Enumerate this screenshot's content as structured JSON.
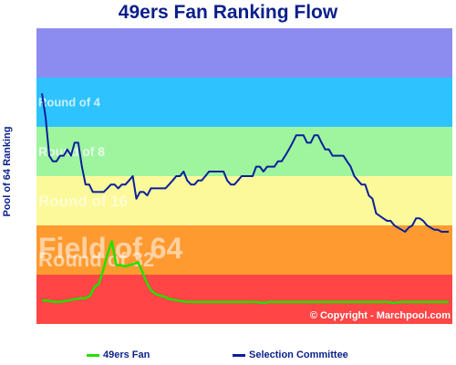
{
  "chart_data": {
    "type": "line",
    "title": "49ers Fan Ranking Flow",
    "xlabel": "",
    "ylabel": "Pool of 64 Ranking",
    "bands": [
      {
        "label": "Field of 64",
        "from": 64,
        "to": 32,
        "color": "#ff4545"
      },
      {
        "label": "Round of 32",
        "from": 32,
        "to": 16,
        "color": "#ff9a30"
      },
      {
        "label": "Round of 16",
        "from": 16,
        "to": 8,
        "color": "#fcf99a"
      },
      {
        "label": "Round of 8",
        "from": 8,
        "to": 4,
        "color": "#9ef59e"
      },
      {
        "label": "Round of 4",
        "from": 4,
        "to": 2,
        "color": "#2ec3ff"
      },
      {
        "label": "",
        "from": 2,
        "to": 1,
        "color": "#8c8cf0"
      }
    ],
    "series": [
      {
        "name": "49ers Fan",
        "color": "#22e000",
        "values": [
          46,
          46,
          46.5,
          47,
          47,
          46.5,
          46,
          45.5,
          45,
          44.5,
          44.5,
          43,
          38,
          36.5,
          30,
          24,
          20,
          28,
          28,
          28.5,
          28,
          27.5,
          27,
          31,
          36,
          40,
          42,
          43,
          43.5,
          45,
          45.5,
          46,
          46.5,
          47,
          47,
          47,
          47,
          47,
          47,
          47,
          47,
          47,
          47,
          47,
          47,
          47,
          47,
          47,
          47,
          47,
          47.5,
          47.5,
          47,
          47,
          47,
          47,
          47,
          47,
          47,
          47,
          47,
          47,
          47,
          47,
          47,
          47,
          47,
          47,
          47,
          47,
          47,
          47,
          47,
          47,
          47,
          47,
          47,
          47,
          47,
          47,
          47.5,
          47.5,
          47,
          47,
          47,
          47,
          47,
          47,
          47,
          47,
          47,
          47,
          47,
          47
        ]
      },
      {
        "name": "Selection Committee",
        "color": "#0a1f9c",
        "values": [
          2.5,
          3.5,
          6,
          6.5,
          6.5,
          6,
          6,
          5.5,
          6,
          5,
          5,
          7,
          9,
          9,
          10,
          10,
          10,
          10,
          9.5,
          9,
          9,
          9.5,
          9,
          9,
          8.5,
          8,
          11,
          10,
          10,
          10.5,
          9.5,
          9.5,
          9.5,
          9.5,
          9.5,
          9,
          8.5,
          8,
          8,
          7.5,
          8.5,
          9,
          9,
          8.5,
          8.5,
          8,
          7.5,
          7.5,
          7.5,
          7.5,
          7.5,
          8.5,
          9,
          9,
          8.5,
          8,
          8,
          8,
          8,
          7,
          7,
          7.5,
          7,
          7,
          7,
          6.5,
          6.5,
          6,
          5.5,
          5,
          4.5,
          4.5,
          4.5,
          5,
          5,
          4.5,
          4.5,
          5,
          5.5,
          5.5,
          6,
          6,
          6,
          6,
          6.5,
          7,
          8,
          8.5,
          9,
          9,
          10.5,
          11,
          13.5,
          14,
          14.5,
          15,
          15,
          16,
          16.5,
          17,
          17.5,
          16.5,
          16,
          14.5,
          14.5,
          15,
          16,
          16.5,
          17,
          17,
          17.5,
          17.5,
          17.5
        ]
      }
    ],
    "ylim": [
      64,
      1
    ],
    "grid": false,
    "legend": "bottom"
  },
  "copyright": "© Copyright - Marchpool.com",
  "legend_items": [
    {
      "label": "49ers Fan",
      "color": "#22e000"
    },
    {
      "label": "Selection Committee",
      "color": "#0a1f9c"
    }
  ]
}
